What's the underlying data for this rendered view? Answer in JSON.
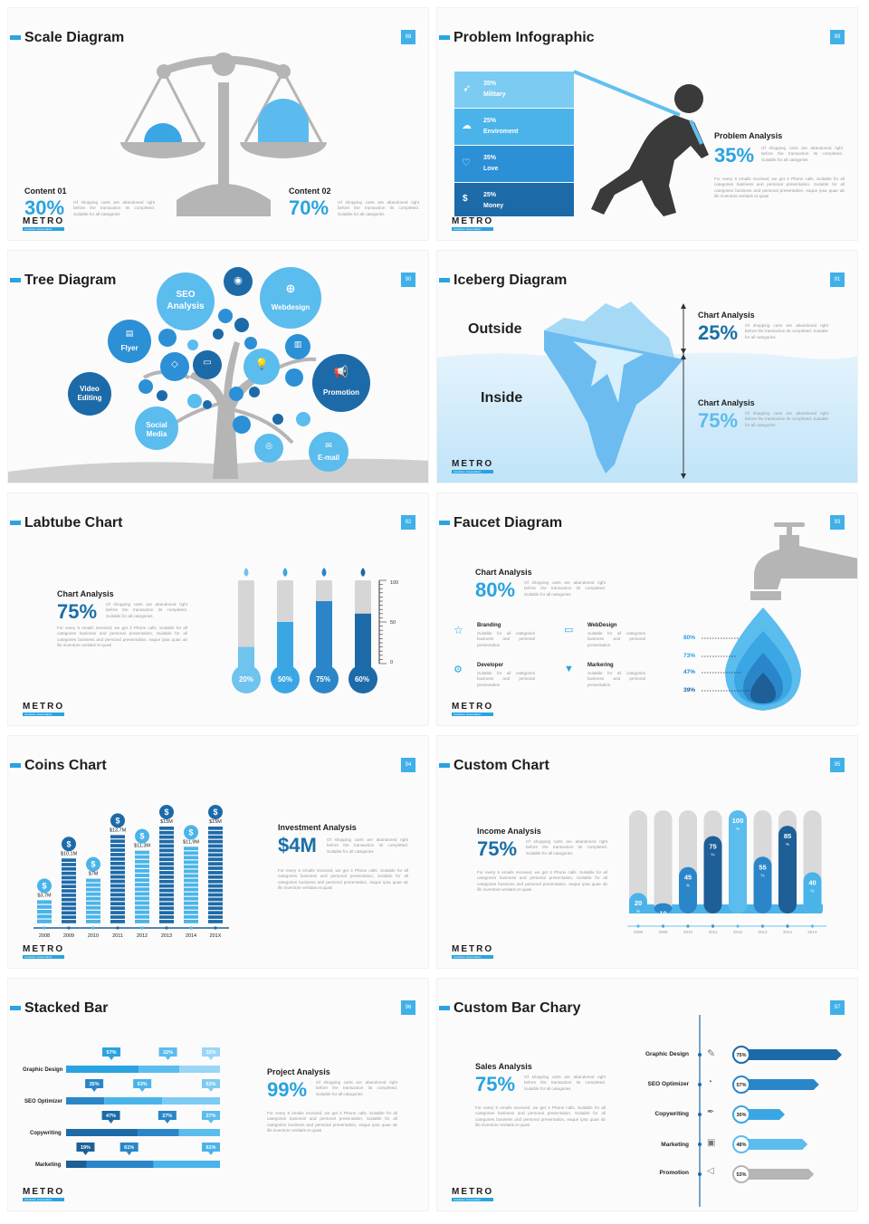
{
  "colors": {
    "accent": "#2aa3e0",
    "dark_blue": "#1a5f96",
    "mid_blue": "#2f8fd4",
    "light_blue": "#6ec3ef",
    "grey": "#b5b5b5"
  },
  "brand": {
    "logo": "METRO",
    "tagline": "revolution presentation"
  },
  "body_text": "Of shopping carts are abandoned right before the transaction its completed. Suitable for all categories",
  "long_text": "For every 6 emails received, we get 3 Phone calls. Suitable for all categories business and personal presentation, Suitable for all categories business and personal presentation, eaque ipsa quae ab illo inventore veritatis et quasi",
  "slides": [
    {
      "title": "Scale Diagram",
      "page": "88",
      "items": [
        {
          "label": "Content 01",
          "value": "30%"
        },
        {
          "label": "Content 02",
          "value": "70%"
        }
      ]
    },
    {
      "title": "Problem Infographic",
      "page": "89",
      "bars": [
        {
          "pct": "35%",
          "label": "Military",
          "icon": "rocket-icon"
        },
        {
          "pct": "25%",
          "label": "Enviroment",
          "icon": "cloud-icon"
        },
        {
          "pct": "35%",
          "label": "Love",
          "icon": "heart-icon"
        },
        {
          "pct": "25%",
          "label": "Money",
          "icon": "money-bag-icon"
        }
      ],
      "analysis_label": "Problem Analysis",
      "analysis_value": "35%"
    },
    {
      "title": "Tree Diagram",
      "page": "90",
      "bubbles": [
        "SEO Analysis",
        "Webdesign",
        "Flyer",
        "Video Editing",
        "Promotion",
        "Social Media",
        "E-mail"
      ]
    },
    {
      "title": "Iceberg Diagram",
      "page": "91",
      "outside": "Outside",
      "inside": "Inside",
      "analyses": [
        {
          "label": "Chart Analysis",
          "value": "25%"
        },
        {
          "label": "Chart Analysis",
          "value": "75%"
        }
      ]
    },
    {
      "title": "Labtube Chart",
      "page": "92",
      "analysis_label": "Chart Analysis",
      "analysis_value": "75%",
      "scale": [
        "100",
        "50",
        "0"
      ],
      "tubes": [
        {
          "label": "20%",
          "value": 20
        },
        {
          "label": "50%",
          "value": 50
        },
        {
          "label": "75%",
          "value": 75
        },
        {
          "label": "60%",
          "value": 60
        }
      ]
    },
    {
      "title": "Faucet Diagram",
      "page": "93",
      "analysis_label": "Chart Analysis",
      "analysis_value": "80%",
      "features": [
        {
          "title": "Branding",
          "icon": "star-icon"
        },
        {
          "title": "WebDesign",
          "icon": "monitor-icon"
        },
        {
          "title": "Developer",
          "icon": "settings-icon"
        },
        {
          "title": "Markering",
          "icon": "tshirt-icon"
        }
      ],
      "feature_text": "Suitable for all categories business and personal presentation",
      "levels": [
        "80%",
        "73%",
        "47%",
        "39%"
      ]
    },
    {
      "title": "Coins Chart",
      "page": "94",
      "analysis_label": "Investment Analysis",
      "analysis_value": "$4M",
      "columns": [
        {
          "year": "2008",
          "label": "$3,7M",
          "value": 3.7
        },
        {
          "year": "2009",
          "label": "$10,1M",
          "value": 10.1
        },
        {
          "year": "2010",
          "label": "$7M",
          "value": 7
        },
        {
          "year": "2011",
          "label": "$13,7M",
          "value": 13.7
        },
        {
          "year": "2012",
          "label": "$11,3M",
          "value": 11.3
        },
        {
          "year": "2013",
          "label": "$15M",
          "value": 15
        },
        {
          "year": "2014",
          "label": "$11,9M",
          "value": 11.9
        },
        {
          "year": "201X",
          "label": "$15M",
          "value": 15
        }
      ]
    },
    {
      "title": "Custom Chart",
      "page": "95",
      "analysis_label": "Income Analysis",
      "analysis_value": "75%",
      "columns": [
        {
          "year": "2008",
          "value": 20
        },
        {
          "year": "2009",
          "value": 10
        },
        {
          "year": "2010",
          "value": 45
        },
        {
          "year": "2011",
          "value": 75
        },
        {
          "year": "2012",
          "value": 100
        },
        {
          "year": "2013",
          "value": 55
        },
        {
          "year": "2014",
          "value": 85
        },
        {
          "year": "201X",
          "value": 40
        }
      ]
    },
    {
      "title": "Stacked Bar",
      "page": "96",
      "analysis_label": "Project Analysis",
      "analysis_value": "99%",
      "rows": [
        {
          "label": "Graphic Design",
          "values": [
            57,
            32,
            32
          ],
          "tags": [
            "57%",
            "32%",
            "32%"
          ]
        },
        {
          "label": "SEO Optimizer",
          "values": [
            35,
            53,
            53
          ],
          "tags": [
            "35%",
            "53%",
            "53%"
          ]
        },
        {
          "label": "Copywriting",
          "values": [
            47,
            27,
            27
          ],
          "tags": [
            "47%",
            "27%",
            "27%"
          ]
        },
        {
          "label": "Marketing",
          "values": [
            19,
            61,
            61
          ],
          "tags": [
            "19%",
            "61%",
            "61%"
          ]
        }
      ]
    },
    {
      "title": "Custom Bar Chary",
      "page": "97",
      "analysis_label": "Sales Analysis",
      "analysis_value": "75%",
      "rows": [
        {
          "label": "Graphic Design",
          "tag": "75%",
          "value": 75,
          "icon": "pen-icon"
        },
        {
          "label": "SEO Optimizer",
          "tag": "57%",
          "value": 57,
          "icon": "speedometer-icon"
        },
        {
          "label": "Copywriting",
          "tag": "30%",
          "value": 30,
          "icon": "nib-icon"
        },
        {
          "label": "Marketing",
          "tag": "48%",
          "value": 48,
          "icon": "briefcase-icon"
        },
        {
          "label": "Promotion",
          "tag": "53%",
          "value": 53,
          "icon": "megaphone-icon"
        }
      ]
    }
  ]
}
